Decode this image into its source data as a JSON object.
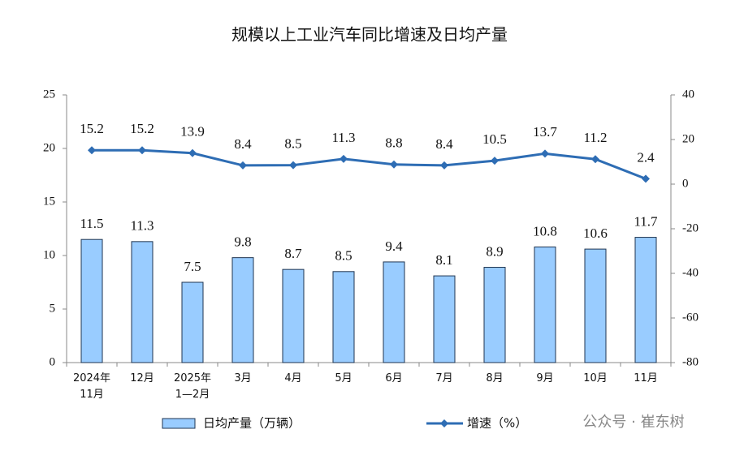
{
  "chart_data": {
    "type": "bar_line",
    "title": "规模以上工业汽车同比增速及日均产量",
    "categories": [
      "2024年\n11月",
      "12月",
      "2025年\n1—2月",
      "3月",
      "4月",
      "5月",
      "6月",
      "7月",
      "8月",
      "9月",
      "10月",
      "11月"
    ],
    "series": [
      {
        "name": "日均产量（万辆）",
        "type": "bar",
        "color": "#99ccff",
        "values": [
          11.5,
          11.3,
          7.5,
          9.8,
          8.7,
          8.5,
          9.4,
          8.1,
          8.9,
          10.8,
          10.6,
          11.7
        ]
      },
      {
        "name": "增速（%）",
        "type": "line",
        "axis": "y2",
        "color": "#2e6db4",
        "values": [
          15.2,
          15.2,
          13.9,
          8.4,
          8.5,
          11.3,
          8.8,
          8.4,
          10.5,
          13.7,
          11.2,
          2.4
        ]
      }
    ],
    "ylim": [
      0,
      25
    ],
    "yticks": [
      0,
      5,
      10,
      15,
      20,
      25
    ],
    "y2lim": [
      -80,
      40
    ],
    "y2ticks": [
      -80,
      -60,
      -40,
      -20,
      0,
      20,
      40
    ],
    "legend": "bottom",
    "watermark": "公众号 · 崔东树"
  }
}
